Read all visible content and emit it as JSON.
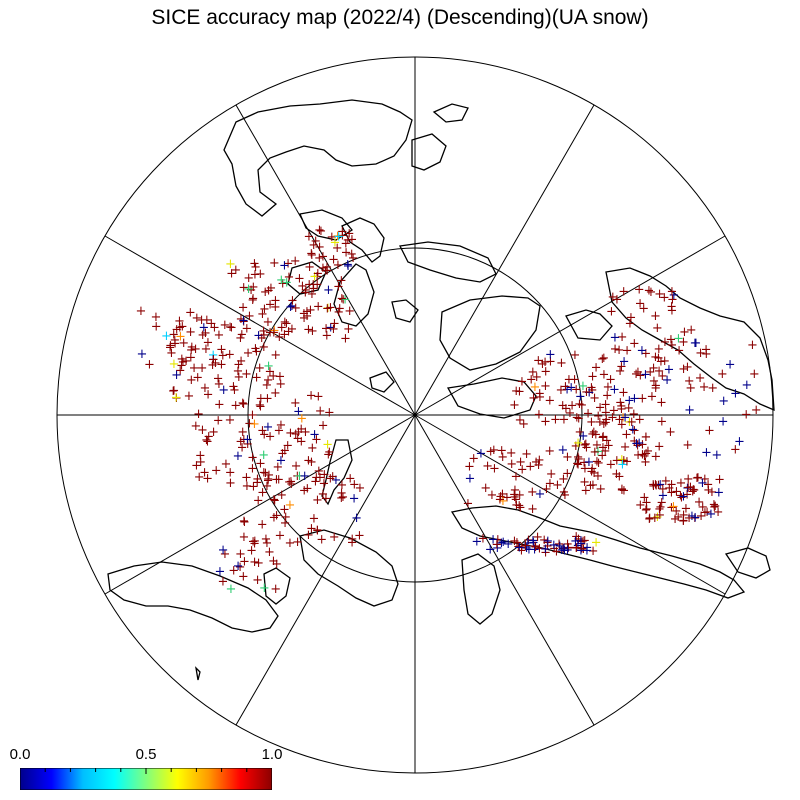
{
  "title": "SICE accuracy map (2022/4) (Descending)(UA snow)",
  "map": {
    "projection": "north-polar-stereographic",
    "graticule": "meridians-every-30-deg-and-inner-latitude-circle",
    "marker": "+",
    "marker_colors": {
      "dominant": "#8b0000",
      "low": "#00008b",
      "mid_green": "#2ecc71",
      "mid_yellow": "#e6e600",
      "mid_orange": "#ff8c00",
      "cyan": "#00d0ff"
    },
    "coastline_color": "#000000"
  },
  "colorbar": {
    "min_label": "0.0",
    "mid_label": "0.5",
    "max_label": "1.0",
    "min": 0.0,
    "max": 1.0,
    "colormap": "jet",
    "colors": [
      "#00008b",
      "#0000ff",
      "#00bfff",
      "#00ffff",
      "#7fff7f",
      "#ffff00",
      "#ff9900",
      "#ff0000",
      "#8b0000"
    ]
  }
}
